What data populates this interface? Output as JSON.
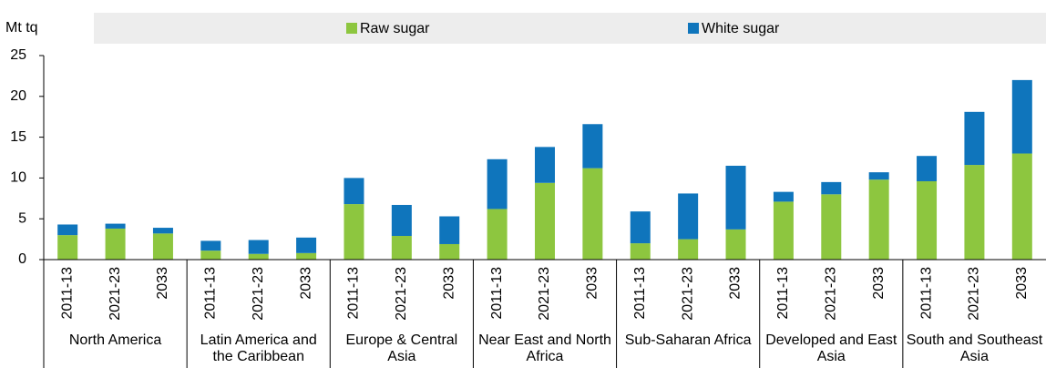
{
  "chart_data": {
    "type": "stacked_bar",
    "y_label": "Mt tq",
    "groups": [
      "North America",
      "Latin America and the Caribbean",
      "Europe & Central Asia",
      "Near East and North Africa",
      "Sub-Saharan Africa",
      "Developed and East Asia",
      "South and Southeast Asia"
    ],
    "categories": [
      "2011-13",
      "2021-23",
      "2033",
      "2011-13",
      "2021-23",
      "2033",
      "2011-13",
      "2021-23",
      "2033",
      "2011-13",
      "2021-23",
      "2033",
      "2011-13",
      "2021-23",
      "2033",
      "2011-13",
      "2021-23",
      "2033",
      "2011-13",
      "2021-23",
      "2033"
    ],
    "series": [
      {
        "name": "Raw sugar",
        "color": "#8dc63f",
        "values": [
          3.0,
          3.8,
          3.2,
          1.1,
          0.7,
          0.8,
          6.8,
          2.9,
          1.9,
          6.2,
          9.4,
          11.2,
          2.0,
          2.5,
          3.7,
          7.1,
          8.0,
          9.8,
          9.6,
          11.6,
          13.0
        ]
      },
      {
        "name": "White sugar",
        "color": "#0f75bc",
        "values": [
          1.3,
          0.6,
          0.7,
          1.2,
          1.7,
          1.9,
          3.2,
          3.8,
          3.4,
          6.1,
          4.4,
          5.4,
          3.9,
          5.6,
          7.8,
          1.2,
          1.5,
          0.9,
          3.1,
          6.5,
          9.0
        ]
      }
    ],
    "ylim": [
      0,
      25
    ],
    "yticks": [
      0,
      5,
      10,
      15,
      20,
      25
    ]
  }
}
